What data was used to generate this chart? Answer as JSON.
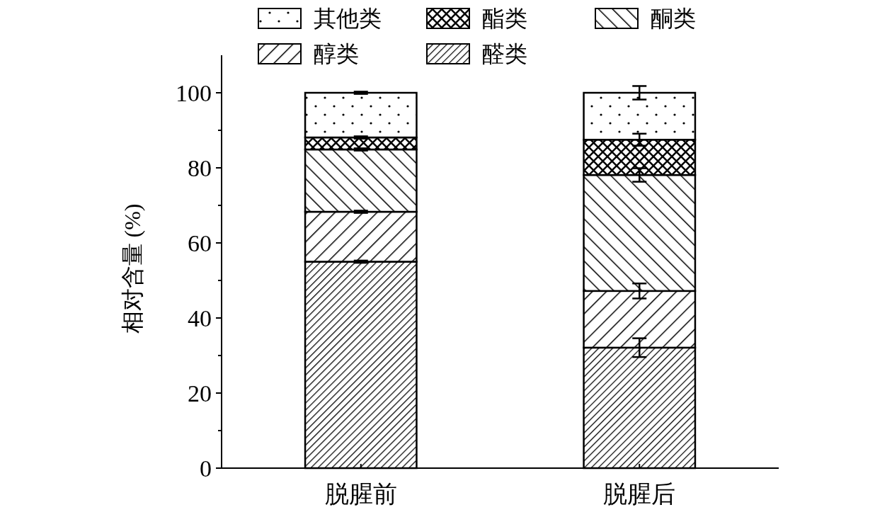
{
  "chart_data": {
    "type": "bar",
    "stacked": true,
    "ylabel": "相对含量 (%)",
    "categories": [
      "脱腥前",
      "脱腥后"
    ],
    "ylim": [
      0,
      110
    ],
    "yticks": [
      0,
      {
        "value": 10,
        "label": null
      },
      20,
      {
        "value": 30,
        "label": null
      },
      40,
      {
        "value": 50,
        "label": null
      },
      60,
      {
        "value": 70,
        "label": null
      },
      80,
      {
        "value": 90,
        "label": null
      },
      100
    ],
    "legend": "top",
    "series": [
      {
        "name": "醛类",
        "color": "#000000",
        "values": [
          55,
          32.1
        ],
        "errors": [
          0.3,
          2.5
        ]
      },
      {
        "name": "醇类",
        "color": "#000000",
        "values": [
          13.3,
          15.1
        ],
        "errors": [
          0.3,
          2
        ]
      },
      {
        "name": "酮类",
        "color": "#000000",
        "values": [
          16.6,
          30.9
        ],
        "errors": [
          0.3,
          1.8
        ]
      },
      {
        "name": "酯类",
        "color": "#000000",
        "values": [
          3.2,
          9.4
        ],
        "errors": [
          0.3,
          1.6
        ]
      },
      {
        "name": "其他类",
        "color": "#000000",
        "values": [
          11.9,
          12.5
        ],
        "errors": [
          0.3,
          1.8
        ]
      }
    ]
  }
}
